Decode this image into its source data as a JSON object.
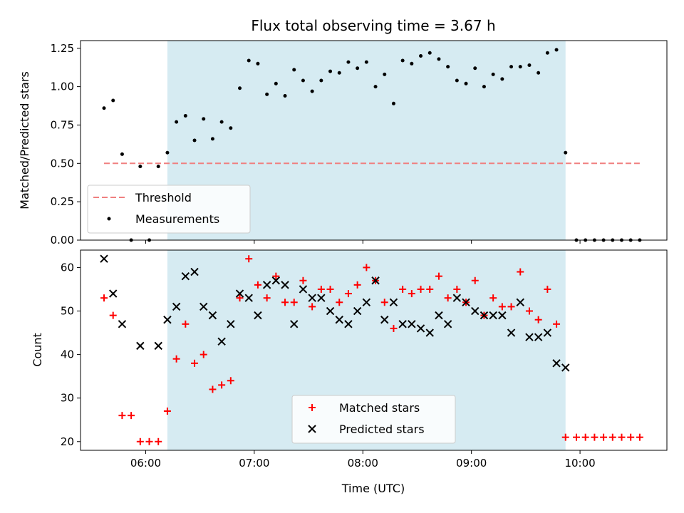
{
  "chart_data": [
    {
      "type": "scatter",
      "title": "Flux total observing time = 3.67 h",
      "xlabel": "",
      "ylabel": "Matched/Predicted stars",
      "xlim": [
        "05:24",
        "10:48"
      ],
      "ylim": [
        0,
        1.3
      ],
      "yticks": [
        "0.00",
        "0.25",
        "0.50",
        "0.75",
        "1.00",
        "1.25"
      ],
      "xticks": [
        "06:00",
        "07:00",
        "08:00",
        "09:00",
        "10:00"
      ],
      "grid": false,
      "legend": "lower-left",
      "shaded_span": [
        "06:12",
        "09:52"
      ],
      "series": [
        {
          "name": "Threshold",
          "kind": "dashed-line",
          "color": "#f08080",
          "x": [
            "05:37",
            "10:33"
          ],
          "y": [
            0.5,
            0.5
          ]
        },
        {
          "name": "Measurements",
          "kind": "points",
          "color": "#000000",
          "x": [
            "05:37",
            "05:42",
            "05:47",
            "05:52",
            "05:57",
            "06:02",
            "06:07",
            "06:12",
            "06:17",
            "06:22",
            "06:27",
            "06:32",
            "06:37",
            "06:42",
            "06:47",
            "06:52",
            "06:57",
            "07:02",
            "07:07",
            "07:12",
            "07:17",
            "07:22",
            "07:27",
            "07:32",
            "07:37",
            "07:42",
            "07:47",
            "07:52",
            "07:57",
            "08:02",
            "08:07",
            "08:12",
            "08:17",
            "08:22",
            "08:27",
            "08:32",
            "08:37",
            "08:42",
            "08:47",
            "08:52",
            "08:57",
            "09:02",
            "09:07",
            "09:12",
            "09:17",
            "09:22",
            "09:27",
            "09:32",
            "09:37",
            "09:42",
            "09:47",
            "09:52",
            "09:58",
            "10:03",
            "10:08",
            "10:13",
            "10:18",
            "10:23",
            "10:28",
            "10:33"
          ],
          "y": [
            0.86,
            0.91,
            0.56,
            0.0,
            0.48,
            0.0,
            0.48,
            0.57,
            0.77,
            0.81,
            0.65,
            0.79,
            0.66,
            0.77,
            0.73,
            0.99,
            1.17,
            1.15,
            0.95,
            1.02,
            0.94,
            1.11,
            1.04,
            0.97,
            1.04,
            1.1,
            1.09,
            1.16,
            1.12,
            1.16,
            1.0,
            1.08,
            0.89,
            1.17,
            1.15,
            1.2,
            1.22,
            1.18,
            1.13,
            1.04,
            1.02,
            1.12,
            1.0,
            1.08,
            1.05,
            1.13,
            1.13,
            1.14,
            1.09,
            1.22,
            1.24,
            0.57,
            0.0,
            0.0,
            0.0,
            0.0,
            0.0,
            0.0,
            0.0,
            0.0
          ]
        }
      ]
    },
    {
      "type": "scatter",
      "title": "",
      "xlabel": "Time (UTC)",
      "ylabel": "Count",
      "xlim": [
        "05:24",
        "10:48"
      ],
      "ylim": [
        18,
        64
      ],
      "yticks": [
        "20",
        "30",
        "40",
        "50",
        "60"
      ],
      "xticks": [
        "06:00",
        "07:00",
        "08:00",
        "09:00",
        "10:00"
      ],
      "grid": false,
      "legend": "lower-center",
      "shaded_span": [
        "06:12",
        "09:52"
      ],
      "series": [
        {
          "name": "Matched stars",
          "kind": "plus",
          "color": "#ff0000",
          "x": [
            "05:37",
            "05:42",
            "05:47",
            "05:52",
            "05:57",
            "06:02",
            "06:07",
            "06:12",
            "06:17",
            "06:22",
            "06:27",
            "06:32",
            "06:37",
            "06:42",
            "06:47",
            "06:52",
            "06:57",
            "07:02",
            "07:07",
            "07:12",
            "07:17",
            "07:22",
            "07:27",
            "07:32",
            "07:37",
            "07:42",
            "07:47",
            "07:52",
            "07:57",
            "08:02",
            "08:07",
            "08:12",
            "08:17",
            "08:22",
            "08:27",
            "08:32",
            "08:37",
            "08:42",
            "08:47",
            "08:52",
            "08:57",
            "09:02",
            "09:07",
            "09:12",
            "09:17",
            "09:22",
            "09:27",
            "09:32",
            "09:37",
            "09:42",
            "09:47",
            "09:52",
            "09:58",
            "10:03",
            "10:08",
            "10:13",
            "10:18",
            "10:23",
            "10:28",
            "10:33"
          ],
          "y": [
            53,
            49,
            26,
            26,
            20,
            20,
            20,
            27,
            39,
            47,
            38,
            40,
            32,
            33,
            34,
            53,
            62,
            56,
            53,
            58,
            52,
            52,
            57,
            51,
            55,
            55,
            52,
            54,
            56,
            60,
            57,
            52,
            46,
            55,
            54,
            55,
            55,
            58,
            53,
            55,
            52,
            57,
            49,
            53,
            51,
            51,
            59,
            50,
            48,
            55,
            47,
            21,
            21,
            21,
            21,
            21,
            21,
            21,
            21,
            21
          ]
        },
        {
          "name": "Predicted stars",
          "kind": "x",
          "color": "#000000",
          "x": [
            "05:37",
            "05:42",
            "05:47",
            "05:57",
            "06:07",
            "06:12",
            "06:17",
            "06:22",
            "06:27",
            "06:32",
            "06:37",
            "06:42",
            "06:47",
            "06:52",
            "06:57",
            "07:02",
            "07:07",
            "07:12",
            "07:17",
            "07:22",
            "07:27",
            "07:32",
            "07:37",
            "07:42",
            "07:47",
            "07:52",
            "07:57",
            "08:02",
            "08:07",
            "08:12",
            "08:17",
            "08:22",
            "08:27",
            "08:32",
            "08:37",
            "08:42",
            "08:47",
            "08:52",
            "08:57",
            "09:02",
            "09:07",
            "09:12",
            "09:17",
            "09:22",
            "09:27",
            "09:32",
            "09:37",
            "09:42",
            "09:47",
            "09:52"
          ],
          "y": [
            62,
            54,
            47,
            42,
            42,
            48,
            51,
            58,
            59,
            51,
            49,
            43,
            47,
            54,
            53,
            49,
            56,
            57,
            56,
            47,
            55,
            53,
            53,
            50,
            48,
            47,
            50,
            52,
            57,
            48,
            52,
            47,
            47,
            46,
            45,
            49,
            47,
            53,
            52,
            50,
            49,
            49,
            49,
            45,
            52,
            44,
            44,
            45,
            38,
            37
          ]
        }
      ]
    }
  ]
}
